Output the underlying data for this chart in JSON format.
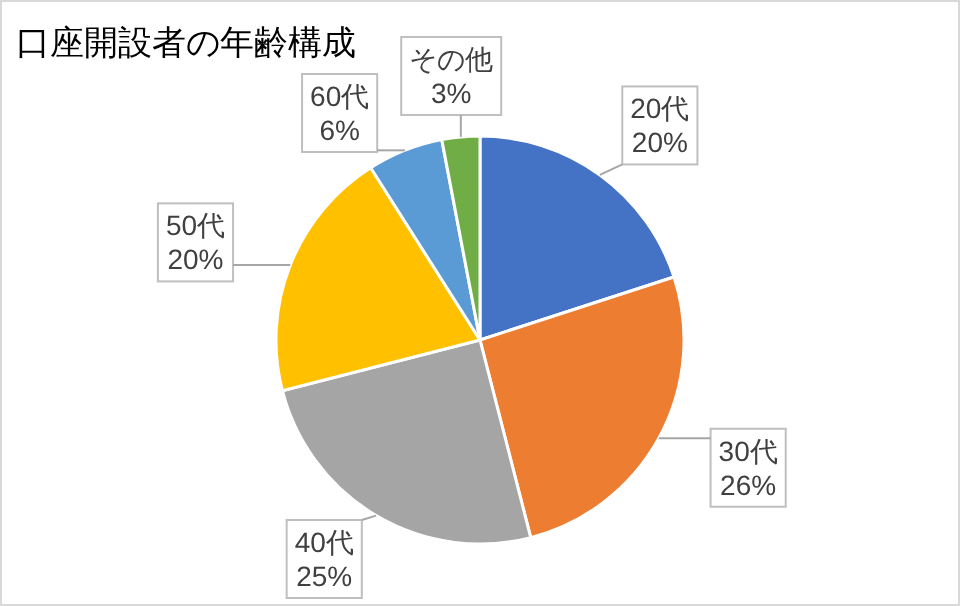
{
  "chart_data": {
    "type": "pie",
    "title": "口座開設者の年齢構成",
    "categories": [
      "20代",
      "30代",
      "40代",
      "50代",
      "60代",
      "その他"
    ],
    "values": [
      20,
      26,
      25,
      20,
      6,
      3
    ],
    "colors": [
      "#4472c4",
      "#ed7d31",
      "#a5a5a5",
      "#ffc000",
      "#5b9bd5",
      "#70ad47"
    ],
    "value_labels": [
      "20%",
      "26%",
      "25%",
      "20%",
      "6%",
      "3%"
    ]
  }
}
